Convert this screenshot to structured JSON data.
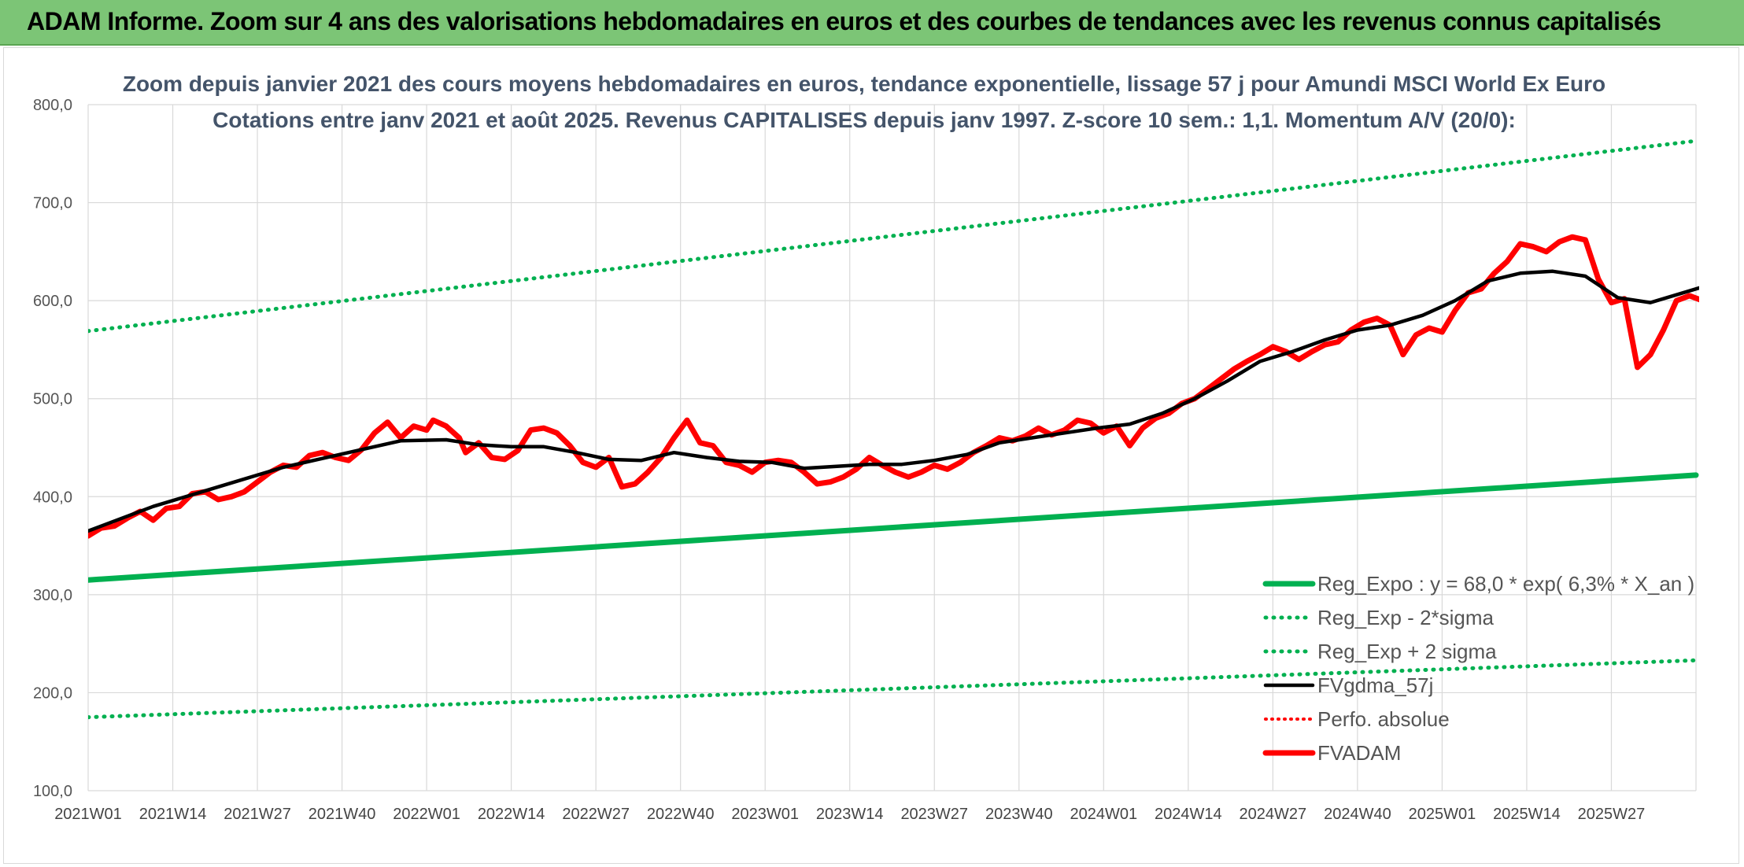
{
  "header": {
    "title": "ADAM Informe. Zoom sur 4 ans des valorisations hebdomadaires en euros et des courbes de tendances avec les revenus connus capitalisés"
  },
  "chart_data": {
    "type": "line",
    "title_line1": "Zoom depuis janvier 2021 des cours moyens hebdomadaires en euros, tendance exponentielle, lissage 57 j pour Amundi MSCI World Ex Euro",
    "title_line2": "Cotations entre janv 2021 et août 2025. Revenus CAPITALISES depuis janv 1997. Z-score 10 sem.: 1,1. Momentum A/V (20/0):",
    "xlabel": "",
    "ylabel": "",
    "ylim": [
      100,
      800
    ],
    "yticks": [
      "800,0",
      "700,0",
      "600,0",
      "500,0",
      "400,0",
      "300,0",
      "200,0",
      "100,0"
    ],
    "x_tick_labels": [
      "2021W01",
      "2021W14",
      "2021W27",
      "2021W40",
      "2022W01",
      "2022W14",
      "2022W27",
      "2022W40",
      "2023W01",
      "2023W14",
      "2023W27",
      "2023W40",
      "2024W01",
      "2024W14",
      "2024W27",
      "2024W40",
      "2025W01",
      "2025W14",
      "2025W27"
    ],
    "x_range_weeks": [
      0,
      247
    ],
    "grid": true,
    "legend_position": "bottom-right",
    "series": [
      {
        "name": "Reg_Expo : y = 68,0 * exp( 6,3% *  X_an )",
        "color": "#00b050",
        "style": "solid-thick",
        "points": [
          [
            0,
            315
          ],
          [
            247,
            422
          ]
        ]
      },
      {
        "name": "Reg_Exp - 2*sigma",
        "color": "#00b050",
        "style": "dotted",
        "points": [
          [
            0,
            175
          ],
          [
            247,
            233
          ]
        ]
      },
      {
        "name": "Reg_Exp + 2 sigma",
        "color": "#00b050",
        "style": "dotted",
        "points": [
          [
            0,
            569
          ],
          [
            247,
            763
          ]
        ]
      },
      {
        "name": "FVgdma_57j",
        "color": "#000000",
        "style": "solid",
        "points": [
          [
            0,
            365
          ],
          [
            10,
            390
          ],
          [
            20,
            410
          ],
          [
            30,
            430
          ],
          [
            40,
            445
          ],
          [
            48,
            457
          ],
          [
            55,
            458
          ],
          [
            60,
            453
          ],
          [
            65,
            451
          ],
          [
            70,
            451
          ],
          [
            75,
            445
          ],
          [
            80,
            438
          ],
          [
            85,
            437
          ],
          [
            90,
            445
          ],
          [
            95,
            440
          ],
          [
            100,
            436
          ],
          [
            105,
            435
          ],
          [
            110,
            429
          ],
          [
            115,
            431
          ],
          [
            120,
            433
          ],
          [
            125,
            433
          ],
          [
            130,
            437
          ],
          [
            135,
            443
          ],
          [
            140,
            455
          ],
          [
            145,
            460
          ],
          [
            150,
            465
          ],
          [
            155,
            470
          ],
          [
            160,
            474
          ],
          [
            165,
            485
          ],
          [
            170,
            500
          ],
          [
            175,
            518
          ],
          [
            180,
            538
          ],
          [
            185,
            548
          ],
          [
            190,
            560
          ],
          [
            195,
            570
          ],
          [
            200,
            575
          ],
          [
            205,
            585
          ],
          [
            210,
            600
          ],
          [
            215,
            620
          ],
          [
            220,
            628
          ],
          [
            225,
            630
          ],
          [
            230,
            625
          ],
          [
            235,
            603
          ],
          [
            240,
            598
          ],
          [
            245,
            608
          ],
          [
            250,
            618
          ],
          [
            255,
            627
          ]
        ]
      },
      {
        "name": "Perfo. absolue",
        "color": "#ff0000",
        "style": "dotted",
        "points": []
      },
      {
        "name": "FVADAM",
        "color": "#ff0000",
        "style": "solid-thick",
        "points": [
          [
            0,
            360
          ],
          [
            2,
            368
          ],
          [
            4,
            370
          ],
          [
            6,
            378
          ],
          [
            8,
            385
          ],
          [
            10,
            376
          ],
          [
            12,
            388
          ],
          [
            14,
            390
          ],
          [
            16,
            403
          ],
          [
            18,
            405
          ],
          [
            20,
            397
          ],
          [
            22,
            400
          ],
          [
            24,
            405
          ],
          [
            26,
            415
          ],
          [
            28,
            425
          ],
          [
            30,
            432
          ],
          [
            32,
            430
          ],
          [
            34,
            442
          ],
          [
            36,
            445
          ],
          [
            38,
            440
          ],
          [
            40,
            437
          ],
          [
            42,
            448
          ],
          [
            44,
            465
          ],
          [
            46,
            476
          ],
          [
            48,
            460
          ],
          [
            50,
            472
          ],
          [
            52,
            468
          ],
          [
            53,
            478
          ],
          [
            55,
            472
          ],
          [
            57,
            460
          ],
          [
            58,
            445
          ],
          [
            60,
            455
          ],
          [
            62,
            440
          ],
          [
            64,
            438
          ],
          [
            66,
            447
          ],
          [
            68,
            468
          ],
          [
            70,
            470
          ],
          [
            72,
            465
          ],
          [
            74,
            452
          ],
          [
            76,
            435
          ],
          [
            78,
            430
          ],
          [
            80,
            440
          ],
          [
            82,
            410
          ],
          [
            84,
            413
          ],
          [
            86,
            425
          ],
          [
            88,
            440
          ],
          [
            90,
            460
          ],
          [
            92,
            478
          ],
          [
            94,
            455
          ],
          [
            96,
            452
          ],
          [
            98,
            435
          ],
          [
            100,
            432
          ],
          [
            102,
            425
          ],
          [
            104,
            435
          ],
          [
            106,
            437
          ],
          [
            108,
            435
          ],
          [
            110,
            425
          ],
          [
            112,
            413
          ],
          [
            114,
            415
          ],
          [
            116,
            420
          ],
          [
            118,
            428
          ],
          [
            120,
            440
          ],
          [
            122,
            432
          ],
          [
            124,
            425
          ],
          [
            126,
            420
          ],
          [
            128,
            425
          ],
          [
            130,
            432
          ],
          [
            132,
            428
          ],
          [
            134,
            435
          ],
          [
            136,
            445
          ],
          [
            138,
            452
          ],
          [
            140,
            460
          ],
          [
            142,
            457
          ],
          [
            144,
            462
          ],
          [
            146,
            470
          ],
          [
            148,
            463
          ],
          [
            150,
            468
          ],
          [
            152,
            478
          ],
          [
            154,
            475
          ],
          [
            156,
            465
          ],
          [
            158,
            472
          ],
          [
            160,
            452
          ],
          [
            162,
            470
          ],
          [
            164,
            480
          ],
          [
            166,
            485
          ],
          [
            168,
            495
          ],
          [
            170,
            500
          ],
          [
            172,
            510
          ],
          [
            174,
            520
          ],
          [
            176,
            530
          ],
          [
            178,
            538
          ],
          [
            180,
            545
          ],
          [
            182,
            553
          ],
          [
            184,
            548
          ],
          [
            186,
            540
          ],
          [
            188,
            548
          ],
          [
            190,
            555
          ],
          [
            192,
            558
          ],
          [
            194,
            570
          ],
          [
            196,
            578
          ],
          [
            198,
            582
          ],
          [
            200,
            575
          ],
          [
            202,
            545
          ],
          [
            204,
            565
          ],
          [
            206,
            572
          ],
          [
            208,
            568
          ],
          [
            210,
            590
          ],
          [
            212,
            608
          ],
          [
            214,
            612
          ],
          [
            216,
            628
          ],
          [
            218,
            640
          ],
          [
            220,
            658
          ],
          [
            222,
            655
          ],
          [
            224,
            650
          ],
          [
            226,
            660
          ],
          [
            228,
            665
          ],
          [
            230,
            662
          ],
          [
            232,
            622
          ],
          [
            234,
            598
          ],
          [
            236,
            602
          ],
          [
            238,
            532
          ],
          [
            240,
            545
          ],
          [
            242,
            570
          ],
          [
            244,
            600
          ],
          [
            246,
            605
          ],
          [
            248,
            600
          ],
          [
            250,
            612
          ],
          [
            252,
            620
          ],
          [
            253,
            632
          ],
          [
            255,
            638
          ]
        ]
      }
    ]
  }
}
